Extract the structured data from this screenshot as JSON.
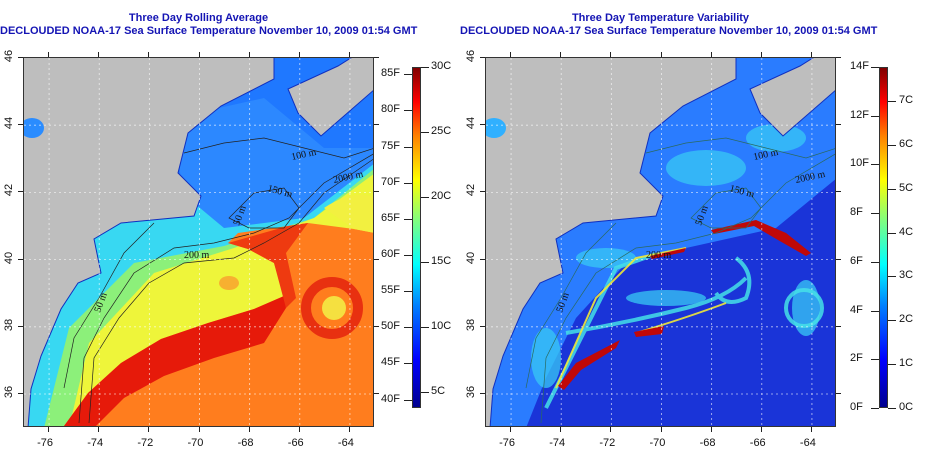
{
  "left_panel": {
    "title": "Three Day Rolling Average",
    "subtitle": "DECLOUDED NOAA-17 Sea Surface Temperature November 10, 2009 01:54 GMT",
    "contour_labels": [
      "100 m",
      "2000 m",
      "150 m",
      "50 m",
      "200 m",
      "50 m"
    ],
    "colorbar": {
      "left_unit_labels": [
        "85F",
        "80F",
        "75F",
        "70F",
        "65F",
        "60F",
        "55F",
        "50F",
        "45F",
        "40F"
      ],
      "left_unit_values": [
        85,
        80,
        75,
        70,
        65,
        60,
        55,
        50,
        45,
        40
      ],
      "right_unit_labels": [
        "30C",
        "25C",
        "20C",
        "15C",
        "10C",
        "5C"
      ],
      "right_unit_values": [
        30,
        25,
        20,
        15,
        10,
        5
      ],
      "range_c": [
        3.8,
        30
      ]
    }
  },
  "right_panel": {
    "title": "Three Day Temperature Variability",
    "subtitle": "DECLOUDED NOAA-17 Sea Surface Temperature November 10, 2009 01:54 GMT",
    "contour_labels": [
      "100 m",
      "2000 m",
      "150 m",
      "50 m",
      "200 m",
      "50 m"
    ],
    "colorbar": {
      "left_unit_labels": [
        "14F",
        "12F",
        "10F",
        "8F",
        "6F",
        "4F",
        "2F",
        "0F"
      ],
      "left_unit_values": [
        14,
        12,
        10,
        8,
        6,
        4,
        2,
        0
      ],
      "right_unit_labels": [
        "7C",
        "6C",
        "5C",
        "4C",
        "3C",
        "2C",
        "1C",
        "0C"
      ],
      "right_unit_values": [
        7,
        6,
        5,
        4,
        3,
        2,
        1,
        0
      ],
      "range_f": [
        0,
        14
      ]
    }
  },
  "axes": {
    "lon_ticks": [
      "-76",
      "-74",
      "-72",
      "-70",
      "-68",
      "-66",
      "-64"
    ],
    "lon_values": [
      -76,
      -74,
      -72,
      -70,
      -68,
      -66,
      -64
    ],
    "lat_ticks": [
      "46",
      "44",
      "42",
      "40",
      "38",
      "36"
    ],
    "lat_values": [
      46,
      44,
      42,
      40,
      38,
      36
    ],
    "lon_range": [
      -77,
      -63
    ],
    "lat_range": [
      35,
      46
    ]
  },
  "colors": {
    "title": "#1414b4",
    "land": "#bebebe"
  }
}
